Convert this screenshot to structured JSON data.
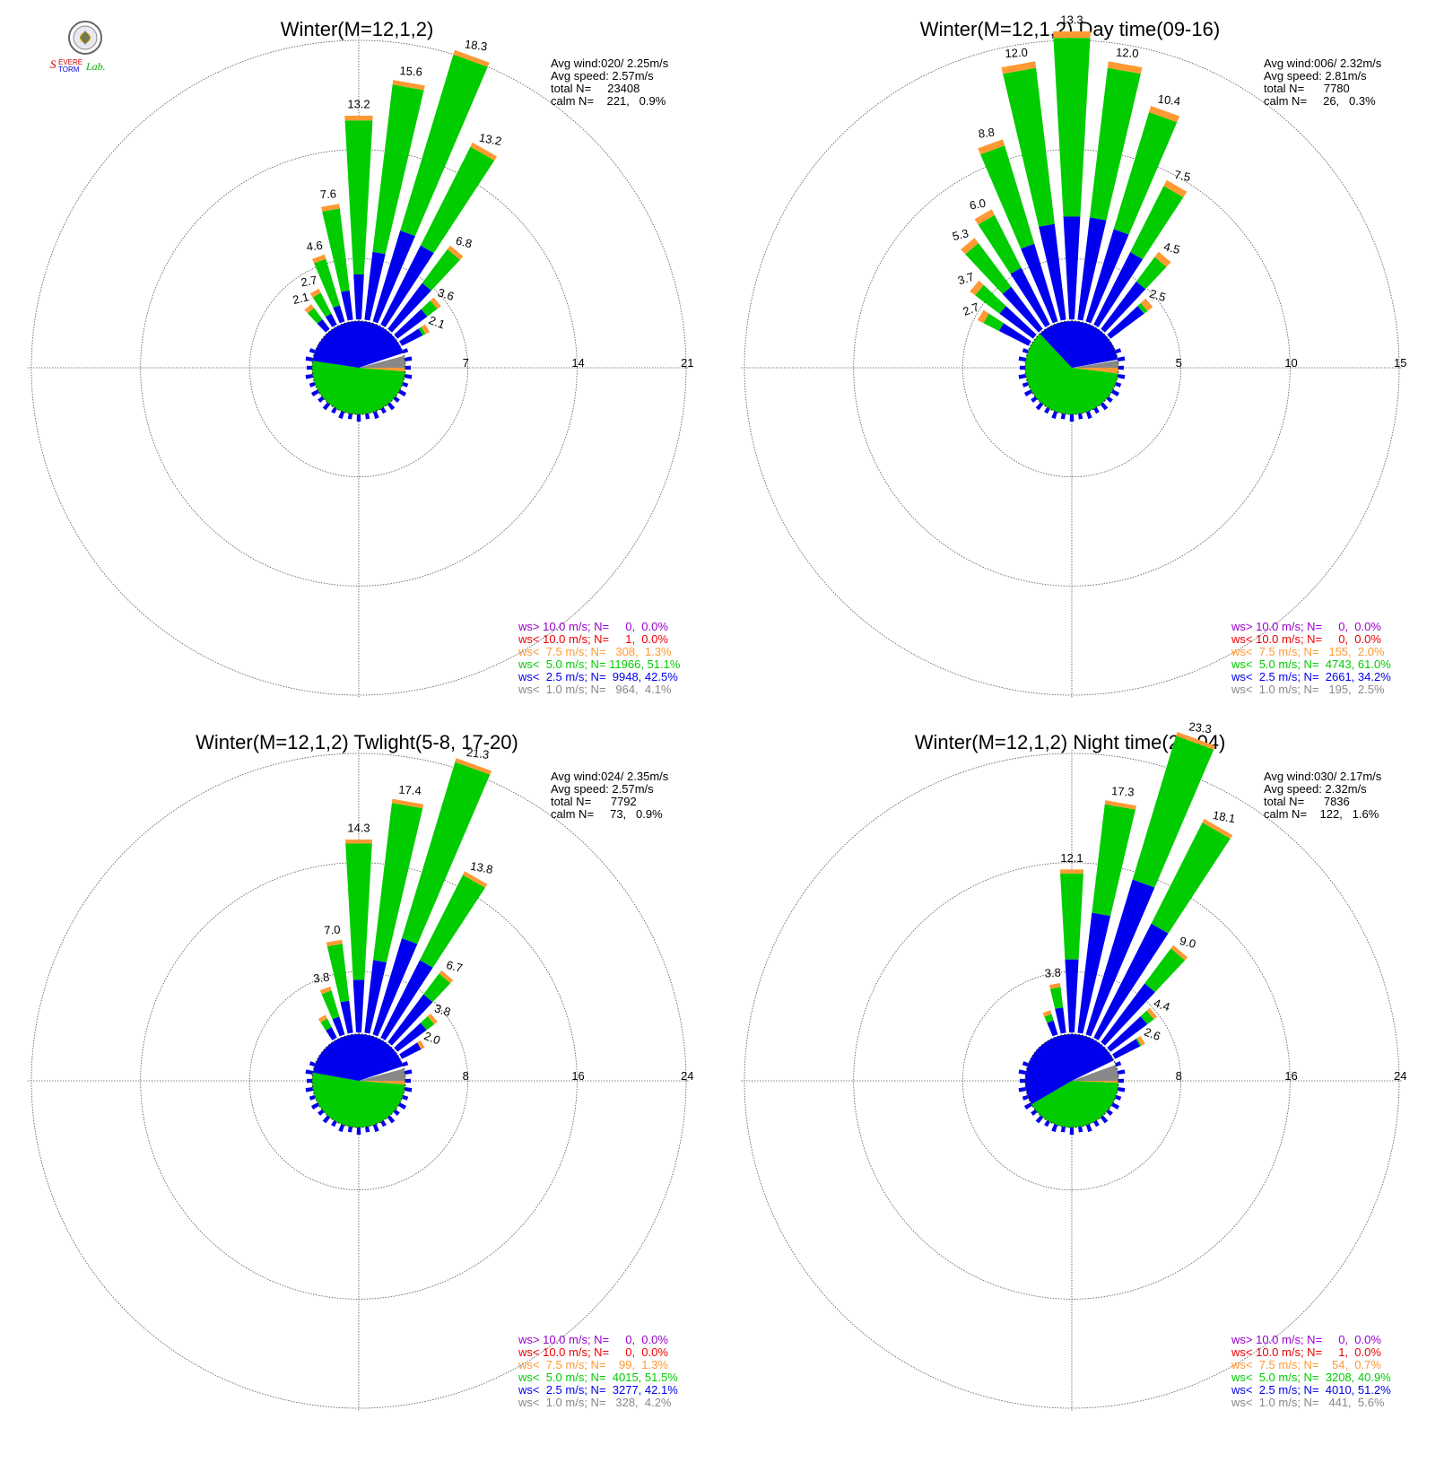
{
  "legend_colors": {
    "ws_gt_10": "#9900cc",
    "ws_lt_10": "#ee0000",
    "ws_lt_7_5": "#ff9933",
    "ws_lt_5": "#00cc00",
    "ws_lt_2_5": "#0000ee",
    "ws_lt_1": "#888888"
  },
  "logo": {
    "text": "Severe Storm Lab."
  },
  "chart_data": [
    {
      "type": "polar-bar",
      "title": "Winter(M=12,1,2)",
      "rings": [
        7,
        14,
        21
      ],
      "stats": {
        "avg_wind": "Avg wind:020/ 2.25m/s",
        "avg_speed": "Avg speed: 2.57m/s",
        "total": "total N=     23408",
        "calm": "calm N=    221,   0.9%"
      },
      "legend": [
        "ws> 10.0 m/s; N=     0,  0.0%",
        "ws< 10.0 m/s; N=     1,  0.0%",
        "ws<  7.5 m/s; N=   308,  1.3%",
        "ws<  5.0 m/s; N= 11966, 51.1%",
        "ws<  2.5 m/s; N=  9948, 42.5%",
        "ws<  1.0 m/s; N=   964,  4.1%"
      ],
      "bars": [
        {
          "dir": 320,
          "total": 2.1,
          "blue": 0.9
        },
        {
          "dir": 330,
          "total": 2.7,
          "blue": 0.9
        },
        {
          "dir": 340,
          "total": 4.6,
          "blue": 1.2
        },
        {
          "dir": 350,
          "total": 7.6,
          "blue": 2.0
        },
        {
          "dir": 360,
          "total": 13.2,
          "blue": 3.0
        },
        {
          "dir": 10,
          "total": 15.6,
          "blue": 4.5
        },
        {
          "dir": 20,
          "total": 18.3,
          "blue": 6.2
        },
        {
          "dir": 30,
          "total": 13.2,
          "blue": 5.8
        },
        {
          "dir": 40,
          "total": 6.8,
          "blue": 3.8
        },
        {
          "dir": 50,
          "total": 3.6,
          "blue": 2.5
        },
        {
          "dir": 60,
          "total": 2.1,
          "blue": 1.6
        }
      ],
      "bar_labels": [
        "2.1",
        "2.7",
        "4.6",
        "7.6",
        "13.2",
        "15.6",
        "18.3",
        "13.2",
        "6.8",
        "3.6",
        "2.1"
      ]
    },
    {
      "type": "polar-bar",
      "title": "Winter(M=12,1,2) Day time(09-16)",
      "rings": [
        5,
        10,
        15
      ],
      "stats": {
        "avg_wind": "Avg wind:006/ 2.32m/s",
        "avg_speed": "Avg speed: 2.81m/s",
        "total": "total N=      7780",
        "calm": "calm N=     26,   0.3%"
      },
      "legend": [
        "ws> 10.0 m/s; N=     0,  0.0%",
        "ws< 10.0 m/s; N=     0,  0.0%",
        "ws<  7.5 m/s; N=   155,  2.0%",
        "ws<  5.0 m/s; N=  4743, 61.0%",
        "ws<  2.5 m/s; N=  2661, 34.2%",
        "ws<  1.0 m/s; N=   195,  2.5%"
      ],
      "bars": [
        {
          "dir": 300,
          "total": 2.7,
          "blue": 1.6
        },
        {
          "dir": 310,
          "total": 3.7,
          "blue": 2.0
        },
        {
          "dir": 320,
          "total": 5.3,
          "blue": 2.5
        },
        {
          "dir": 330,
          "total": 6.0,
          "blue": 3.0
        },
        {
          "dir": 340,
          "total": 8.8,
          "blue": 3.8
        },
        {
          "dir": 350,
          "total": 12.0,
          "blue": 4.5
        },
        {
          "dir": 360,
          "total": 13.3,
          "blue": 4.8
        },
        {
          "dir": 10,
          "total": 12.0,
          "blue": 4.8
        },
        {
          "dir": 20,
          "total": 10.4,
          "blue": 4.5
        },
        {
          "dir": 30,
          "total": 7.5,
          "blue": 3.8
        },
        {
          "dir": 40,
          "total": 4.5,
          "blue": 2.8
        },
        {
          "dir": 50,
          "total": 2.5,
          "blue": 2.0
        }
      ],
      "bar_labels": [
        "2.7",
        "3.7",
        "5.3",
        "6.0",
        "8.8",
        "12.0",
        "13.3",
        "12.0",
        "10.4",
        "7.5",
        "4.5",
        "2.5"
      ]
    },
    {
      "type": "polar-bar",
      "title": "Winter(M=12,1,2) Twlight(5-8, 17-20)",
      "rings": [
        8,
        16,
        24
      ],
      "stats": {
        "avg_wind": "Avg wind:024/ 2.35m/s",
        "avg_speed": "Avg speed: 2.57m/s",
        "total": "total N=      7792",
        "calm": "calm N=     73,   0.9%"
      },
      "legend": [
        "ws> 10.0 m/s; N=     0,  0.0%",
        "ws< 10.0 m/s; N=     0,  0.0%",
        "ws<  7.5 m/s; N=    99,  1.3%",
        "ws<  5.0 m/s; N=  4015, 51.5%",
        "ws<  2.5 m/s; N=  3277, 42.1%",
        "ws<  1.0 m/s; N=   328,  4.2%"
      ],
      "bars": [
        {
          "dir": 330,
          "total": 2.0,
          "blue": 1.0
        },
        {
          "dir": 340,
          "total": 3.8,
          "blue": 1.5
        },
        {
          "dir": 350,
          "total": 7.0,
          "blue": 2.5
        },
        {
          "dir": 360,
          "total": 14.3,
          "blue": 4.0
        },
        {
          "dir": 10,
          "total": 17.4,
          "blue": 5.5
        },
        {
          "dir": 20,
          "total": 21.3,
          "blue": 7.5
        },
        {
          "dir": 30,
          "total": 13.8,
          "blue": 6.5
        },
        {
          "dir": 40,
          "total": 6.7,
          "blue": 4.5
        },
        {
          "dir": 50,
          "total": 3.8,
          "blue": 2.8
        },
        {
          "dir": 60,
          "total": 2.0,
          "blue": 1.8
        }
      ],
      "bar_labels": [
        "",
        "3.8",
        "7.0",
        "14.3",
        "17.4",
        "21.3",
        "13.8",
        "6.7",
        "3.8",
        "2.0"
      ]
    },
    {
      "type": "polar-bar",
      "title": "Winter(M=12,1,2) Night time(21-04)",
      "rings": [
        8,
        16,
        24
      ],
      "stats": {
        "avg_wind": "Avg wind:030/ 2.17m/s",
        "avg_speed": "Avg speed: 2.32m/s",
        "total": "total N=      7836",
        "calm": "calm N=    122,   1.6%"
      },
      "legend": [
        "ws> 10.0 m/s; N=     0,  0.0%",
        "ws< 10.0 m/s; N=     1,  0.0%",
        "ws<  7.5 m/s; N=    54,  0.7%",
        "ws<  5.0 m/s; N=  3208, 40.9%",
        "ws<  2.5 m/s; N=  4010, 51.2%",
        "ws<  1.0 m/s; N=   441,  5.6%"
      ],
      "bars": [
        {
          "dir": 340,
          "total": 2.0,
          "blue": 1.2
        },
        {
          "dir": 350,
          "total": 3.8,
          "blue": 2.0
        },
        {
          "dir": 360,
          "total": 12.1,
          "blue": 5.5
        },
        {
          "dir": 10,
          "total": 17.3,
          "blue": 9.0
        },
        {
          "dir": 20,
          "total": 23.3,
          "blue": 12.0
        },
        {
          "dir": 30,
          "total": 18.1,
          "blue": 9.5
        },
        {
          "dir": 40,
          "total": 9.0,
          "blue": 5.5
        },
        {
          "dir": 50,
          "total": 4.4,
          "blue": 3.5
        },
        {
          "dir": 60,
          "total": 2.6,
          "blue": 2.2
        }
      ],
      "bar_labels": [
        "",
        "3.8",
        "12.1",
        "17.3",
        "23.3",
        "18.1",
        "9.0",
        "4.4",
        "2.6"
      ]
    }
  ]
}
